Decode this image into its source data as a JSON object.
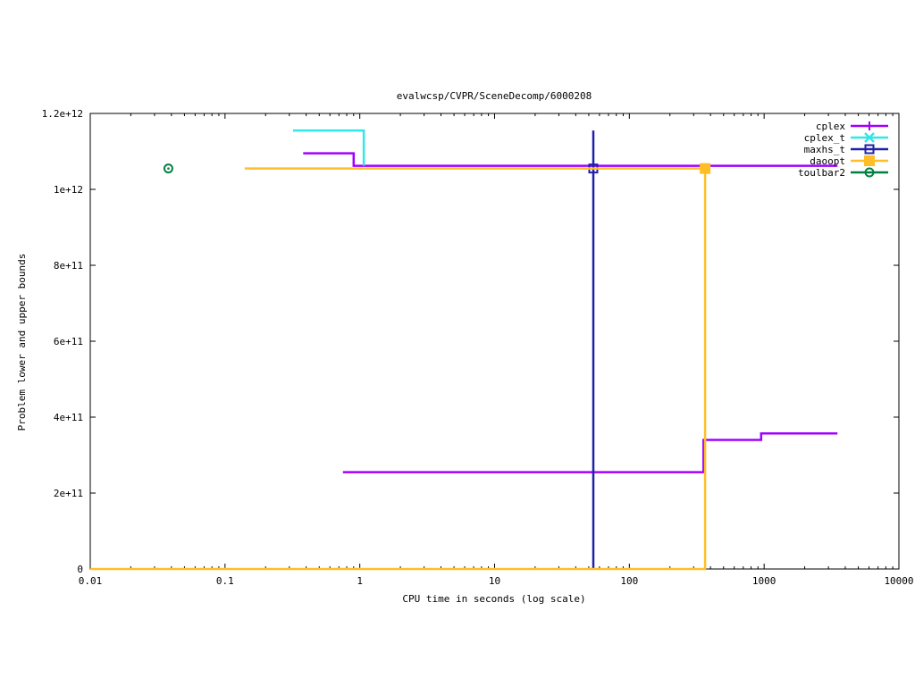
{
  "chart_data": {
    "type": "line",
    "title": "evalwcsp/CVPR/SceneDecomp/6000208",
    "xlabel": "CPU time in seconds (log scale)",
    "ylabel": "Problem lower and upper bounds",
    "xscale": "log",
    "xlim": [
      0.01,
      10000
    ],
    "ylim": [
      0,
      1200000000000.0
    ],
    "xticks": [
      {
        "value": 0.01,
        "label": "0.01"
      },
      {
        "value": 0.1,
        "label": "0.1"
      },
      {
        "value": 1,
        "label": "1"
      },
      {
        "value": 10,
        "label": "10"
      },
      {
        "value": 100,
        "label": "100"
      },
      {
        "value": 1000,
        "label": "1000"
      },
      {
        "value": 10000,
        "label": "10000"
      }
    ],
    "yticks": [
      {
        "value": 0,
        "label": "0"
      },
      {
        "value": 200000000000.0,
        "label": "2e+11"
      },
      {
        "value": 400000000000.0,
        "label": "4e+11"
      },
      {
        "value": 600000000000.0,
        "label": "6e+11"
      },
      {
        "value": 800000000000.0,
        "label": "8e+11"
      },
      {
        "value": 1000000000000.0,
        "label": "1e+12"
      },
      {
        "value": 1200000000000.0,
        "label": "1.2e+12"
      }
    ],
    "grid": false,
    "legend_position": "top-right",
    "series": [
      {
        "name": "cplex",
        "color": "#a000ff",
        "marker": "plus",
        "segments": [
          [
            [
              0.38,
              1095000000000.0
            ],
            [
              0.9,
              1095000000000.0
            ],
            [
              0.9,
              1062000000000.0
            ],
            [
              3500,
              1062000000000.0
            ]
          ],
          [
            [
              0.75,
              255000000000.0
            ],
            [
              355,
              255000000000.0
            ],
            [
              355,
              340000000000.0
            ],
            [
              950,
              340000000000.0
            ],
            [
              950,
              357000000000.0
            ],
            [
              3500,
              357000000000.0
            ]
          ]
        ],
        "markers": []
      },
      {
        "name": "cplex_t",
        "color": "#30e8e8",
        "marker": "x",
        "segments": [
          [
            [
              0.32,
              1155000000000.0
            ],
            [
              1.07,
              1155000000000.0
            ],
            [
              1.07,
              1062000000000.0
            ]
          ]
        ],
        "markers": []
      },
      {
        "name": "maxhs_t",
        "color": "#2020a8",
        "marker": "square",
        "segments": [
          [
            [
              54,
              0
            ],
            [
              54,
              1155000000000.0
            ]
          ]
        ],
        "markers": [
          [
            54,
            1055000000000.0
          ]
        ]
      },
      {
        "name": "daoopt",
        "color": "#ffbe28",
        "marker": "filled-square",
        "segments": [
          [
            [
              0.14,
              1055000000000.0
            ],
            [
              365,
              1055000000000.0
            ],
            [
              365,
              0
            ],
            [
              0.01,
              0
            ]
          ]
        ],
        "markers": [
          [
            365,
            1055000000000.0
          ]
        ]
      },
      {
        "name": "toulbar2",
        "color": "#008040",
        "marker": "circle",
        "segments": [],
        "markers": [
          [
            0.038,
            1055000000000.0
          ]
        ]
      }
    ]
  }
}
